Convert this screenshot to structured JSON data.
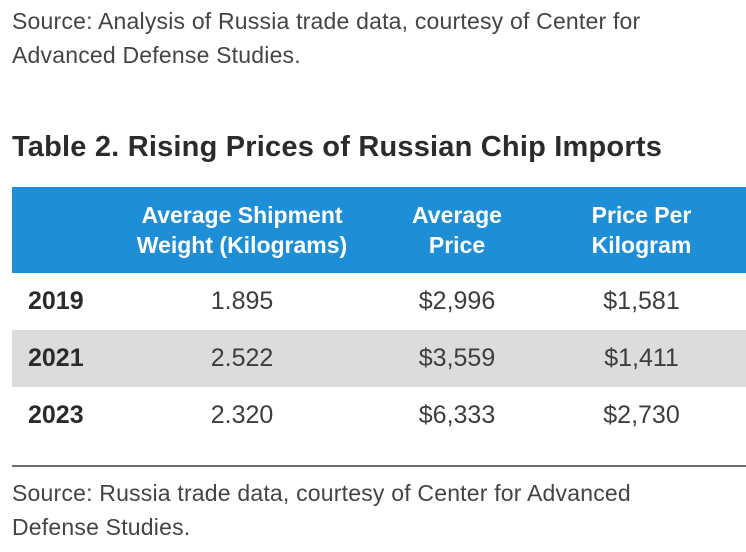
{
  "top_source": {
    "line1": "Source: Analysis of Russia trade data, courtesy of Center for",
    "line2": "Advanced Defense Studies."
  },
  "table": {
    "title": "Table 2. Rising Prices of Russian Chip Imports",
    "header_color": "#1e8fd6",
    "shaded_row_color": "#dcdcdc",
    "columns": [
      {
        "line1": "",
        "line2": ""
      },
      {
        "line1": "Average Shipment",
        "line2": "Weight (Kilograms)"
      },
      {
        "line1": "Average",
        "line2": "Price"
      },
      {
        "line1": "Price Per",
        "line2": "Kilogram"
      }
    ],
    "rows": [
      {
        "year": "2019",
        "weight": "1.895",
        "price": "$2,996",
        "price_per_kg": "$1,581",
        "shaded": false
      },
      {
        "year": "2021",
        "weight": "2.522",
        "price": "$3,559",
        "price_per_kg": "$1,411",
        "shaded": true
      },
      {
        "year": "2023",
        "weight": "2.320",
        "price": "$6,333",
        "price_per_kg": "$2,730",
        "shaded": false
      }
    ]
  },
  "bottom_source": {
    "line1": "Source: Russia trade data, courtesy of Center for Advanced",
    "line2": "Defense Studies."
  }
}
